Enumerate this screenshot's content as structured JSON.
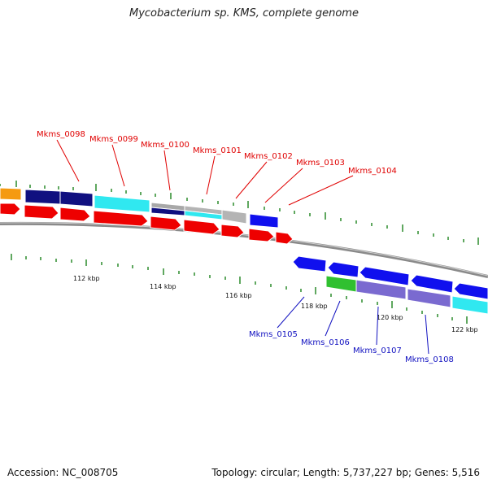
{
  "title": "Mycobacterium sp. KMS, complete genome",
  "accession": "Accession: NC_008705",
  "summary": "Topology: circular; Length: 5,737,227 bp; Genes: 5,516",
  "scale_labels": [
    "112 kbp",
    "114 kbp",
    "116 kbp",
    "118 kbp",
    "120 kbp",
    "122 kbp"
  ],
  "top_genes": [
    "Mkms_0098",
    "Mkms_0099",
    "Mkms_0100",
    "Mkms_0101",
    "Mkms_0102",
    "Mkms_0103",
    "Mkms_0104"
  ],
  "bottom_genes": [
    "Mkms_0105",
    "Mkms_0106",
    "Mkms_0107",
    "Mkms_0108"
  ],
  "colors": {
    "red": "#ee0000",
    "orange": "#f59a10",
    "navy": "#101080",
    "cyan": "#30e8f0",
    "gray": "#b4b4b4",
    "blue": "#1010ee",
    "green": "#30c030",
    "purple": "#7a6ad0",
    "tick": "#2a8a2a",
    "top_label": "#e00000",
    "bottom_label": "#1010c0"
  }
}
